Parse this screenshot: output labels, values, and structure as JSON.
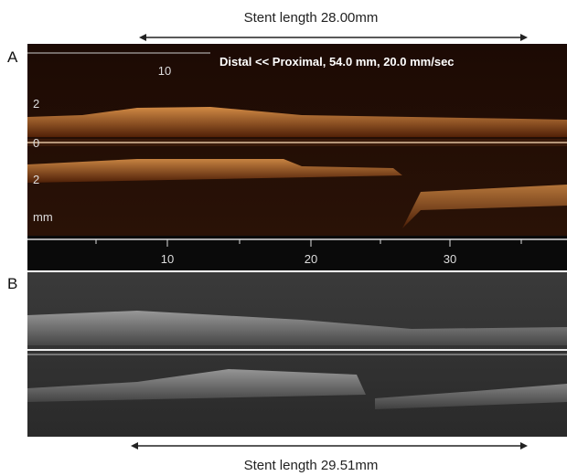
{
  "caption_top": "Stent length 28.00mm",
  "panel_a": {
    "label": "A",
    "overlay_text": "Distal << Proximal, 54.0 mm, 20.0 mm/sec",
    "top_scale_label": "10",
    "depth_labels": [
      "2",
      "0",
      "2"
    ],
    "depth_unit": "mm",
    "bottom_scale_labels": [
      "10",
      "20",
      "30"
    ]
  },
  "panel_b": {
    "label": "B"
  },
  "caption_bottom": "Stent length 29.51mm"
}
